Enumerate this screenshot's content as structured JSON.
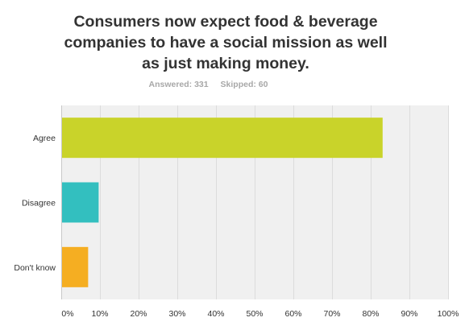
{
  "title_lines": [
    "Consumers now expect food & beverage",
    "companies to have a social mission as well",
    "as just making money."
  ],
  "answered": "Answered: 331",
  "skipped": "Skipped: 60",
  "chart_data": {
    "type": "bar",
    "orientation": "horizontal",
    "categories": [
      "Agree",
      "Disagree",
      "Don't know"
    ],
    "values": [
      83.08,
      9.67,
      6.95
    ],
    "colors": [
      "#c9d32a",
      "#33bfbf",
      "#f5ae22"
    ],
    "xlim": [
      0,
      100
    ],
    "xticks": [
      "0%",
      "10%",
      "20%",
      "30%",
      "40%",
      "50%",
      "60%",
      "70%",
      "80%",
      "90%",
      "100%"
    ],
    "grid": true,
    "plot_background": "#f0f0f0"
  }
}
